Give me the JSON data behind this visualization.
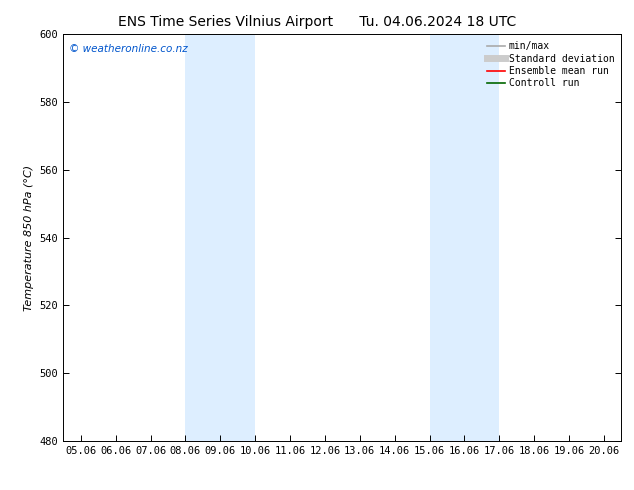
{
  "title_left": "ENS Time Series Vilnius Airport",
  "title_right": "Tu. 04.06.2024 18 UTC",
  "ylabel": "Temperature 850 hPa (°C)",
  "xlim_dates": [
    "05.06",
    "06.06",
    "07.06",
    "08.06",
    "09.06",
    "10.06",
    "11.06",
    "12.06",
    "13.06",
    "14.06",
    "15.06",
    "16.06",
    "17.06",
    "18.06",
    "19.06",
    "20.06"
  ],
  "ylim": [
    480,
    600
  ],
  "yticks": [
    480,
    500,
    520,
    540,
    560,
    580,
    600
  ],
  "shade_bands": [
    {
      "x0_label": "08.06",
      "x1_label": "10.06",
      "color": "#ddeeff"
    },
    {
      "x0_label": "15.06",
      "x1_label": "17.06",
      "color": "#ddeeff"
    }
  ],
  "watermark_text": "© weatheronline.co.nz",
  "watermark_color": "#0055cc",
  "legend_items": [
    {
      "label": "min/max",
      "color": "#aaaaaa",
      "lw": 1.2
    },
    {
      "label": "Standard deviation",
      "color": "#cccccc",
      "lw": 5
    },
    {
      "label": "Ensemble mean run",
      "color": "#ff0000",
      "lw": 1.2
    },
    {
      "label": "Controll run",
      "color": "#006600",
      "lw": 1.2
    }
  ],
  "bg_color": "#ffffff",
  "title_fontsize": 10,
  "label_fontsize": 8,
  "tick_fontsize": 7.5
}
